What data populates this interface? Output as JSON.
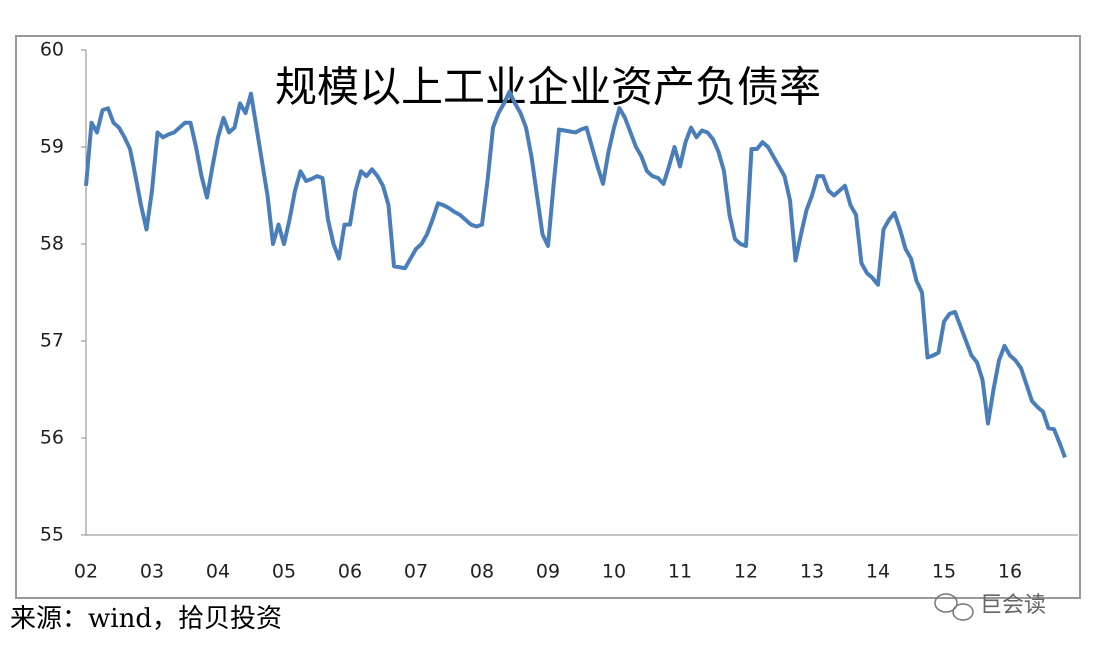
{
  "chart_data": {
    "type": "line",
    "title": "规模以上工业企业资产负债率",
    "source": "来源：wind，拾贝投资",
    "watermark": "巨会读",
    "color": "#4a7ebb",
    "ylim": [
      55,
      60
    ],
    "yticks": [
      55,
      56,
      57,
      58,
      59,
      60
    ],
    "grid": false,
    "categories": [
      "02",
      null,
      null,
      null,
      null,
      null,
      null,
      null,
      null,
      null,
      null,
      null,
      "03",
      null,
      null,
      null,
      null,
      null,
      null,
      null,
      null,
      null,
      null,
      null,
      "04",
      null,
      null,
      null,
      null,
      null,
      null,
      null,
      null,
      null,
      null,
      null,
      "05",
      null,
      null,
      null,
      null,
      null,
      null,
      null,
      null,
      null,
      null,
      null,
      "06",
      null,
      null,
      null,
      null,
      null,
      null,
      null,
      null,
      null,
      null,
      null,
      "07",
      null,
      null,
      null,
      null,
      null,
      null,
      null,
      null,
      null,
      null,
      null,
      "08",
      null,
      null,
      null,
      null,
      null,
      null,
      null,
      null,
      null,
      null,
      null,
      "09",
      null,
      null,
      null,
      null,
      null,
      null,
      null,
      null,
      null,
      null,
      null,
      "10",
      null,
      null,
      null,
      null,
      null,
      null,
      null,
      null,
      null,
      null,
      null,
      "11",
      null,
      null,
      null,
      null,
      null,
      null,
      null,
      null,
      null,
      null,
      null,
      "12",
      null,
      null,
      null,
      null,
      null,
      null,
      null,
      null,
      null,
      null,
      null,
      "13",
      null,
      null,
      null,
      null,
      null,
      null,
      null,
      null,
      null,
      null,
      null,
      "14",
      null,
      null,
      null,
      null,
      null,
      null,
      null,
      null,
      null,
      null,
      null,
      "15",
      null,
      null,
      null,
      null,
      null,
      null,
      null,
      null,
      null,
      null,
      null,
      "16",
      null,
      null,
      null,
      null,
      null,
      null,
      null,
      null,
      null,
      null
    ],
    "values": [
      58.6,
      59.25,
      59.15,
      59.38,
      59.4,
      59.25,
      59.2,
      59.1,
      58.98,
      58.7,
      58.4,
      58.15,
      58.55,
      59.15,
      59.1,
      59.13,
      59.15,
      59.2,
      59.25,
      59.25,
      59.0,
      58.7,
      58.48,
      58.8,
      59.1,
      59.3,
      59.15,
      59.2,
      59.45,
      59.35,
      59.55,
      59.2,
      58.85,
      58.5,
      58.0,
      58.2,
      58.0,
      58.25,
      58.55,
      58.75,
      58.65,
      58.67,
      58.7,
      58.68,
      58.25,
      58.0,
      57.85,
      58.2,
      58.2,
      58.55,
      58.75,
      58.7,
      58.77,
      58.7,
      58.6,
      58.4,
      57.77,
      57.76,
      57.75,
      57.85,
      57.95,
      58.0,
      58.1,
      58.25,
      58.42,
      58.4,
      58.37,
      58.33,
      58.3,
      58.25,
      58.2,
      58.18,
      58.2,
      58.65,
      59.2,
      59.35,
      59.45,
      59.57,
      59.45,
      59.35,
      59.2,
      58.9,
      58.5,
      58.1,
      57.98,
      58.6,
      59.18,
      59.17,
      59.16,
      59.15,
      59.18,
      59.2,
      59.0,
      58.8,
      58.62,
      58.95,
      59.2,
      59.4,
      59.3,
      59.15,
      59.0,
      58.9,
      58.75,
      58.7,
      58.68,
      58.62,
      58.8,
      59.0,
      58.8,
      59.05,
      59.2,
      59.1,
      59.17,
      59.15,
      59.08,
      58.95,
      58.75,
      58.3,
      58.05,
      58.0,
      57.98,
      58.98,
      58.98,
      59.05,
      59.0,
      58.9,
      58.8,
      58.7,
      58.45,
      57.83,
      58.1,
      58.35,
      58.5,
      58.7,
      58.7,
      58.55,
      58.5,
      58.55,
      58.6,
      58.4,
      58.3,
      57.8,
      57.7,
      57.65,
      57.58,
      58.15,
      58.25,
      58.32,
      58.15,
      57.95,
      57.85,
      57.62,
      57.5,
      56.83,
      56.85,
      56.88,
      57.2,
      57.28,
      57.3,
      57.15,
      57.0,
      56.85,
      56.78,
      56.6,
      56.15,
      56.5,
      56.8,
      56.95,
      56.85,
      56.8,
      56.72,
      56.55,
      56.38,
      56.32,
      56.27,
      56.1,
      56.09,
      55.95,
      55.8
    ]
  }
}
